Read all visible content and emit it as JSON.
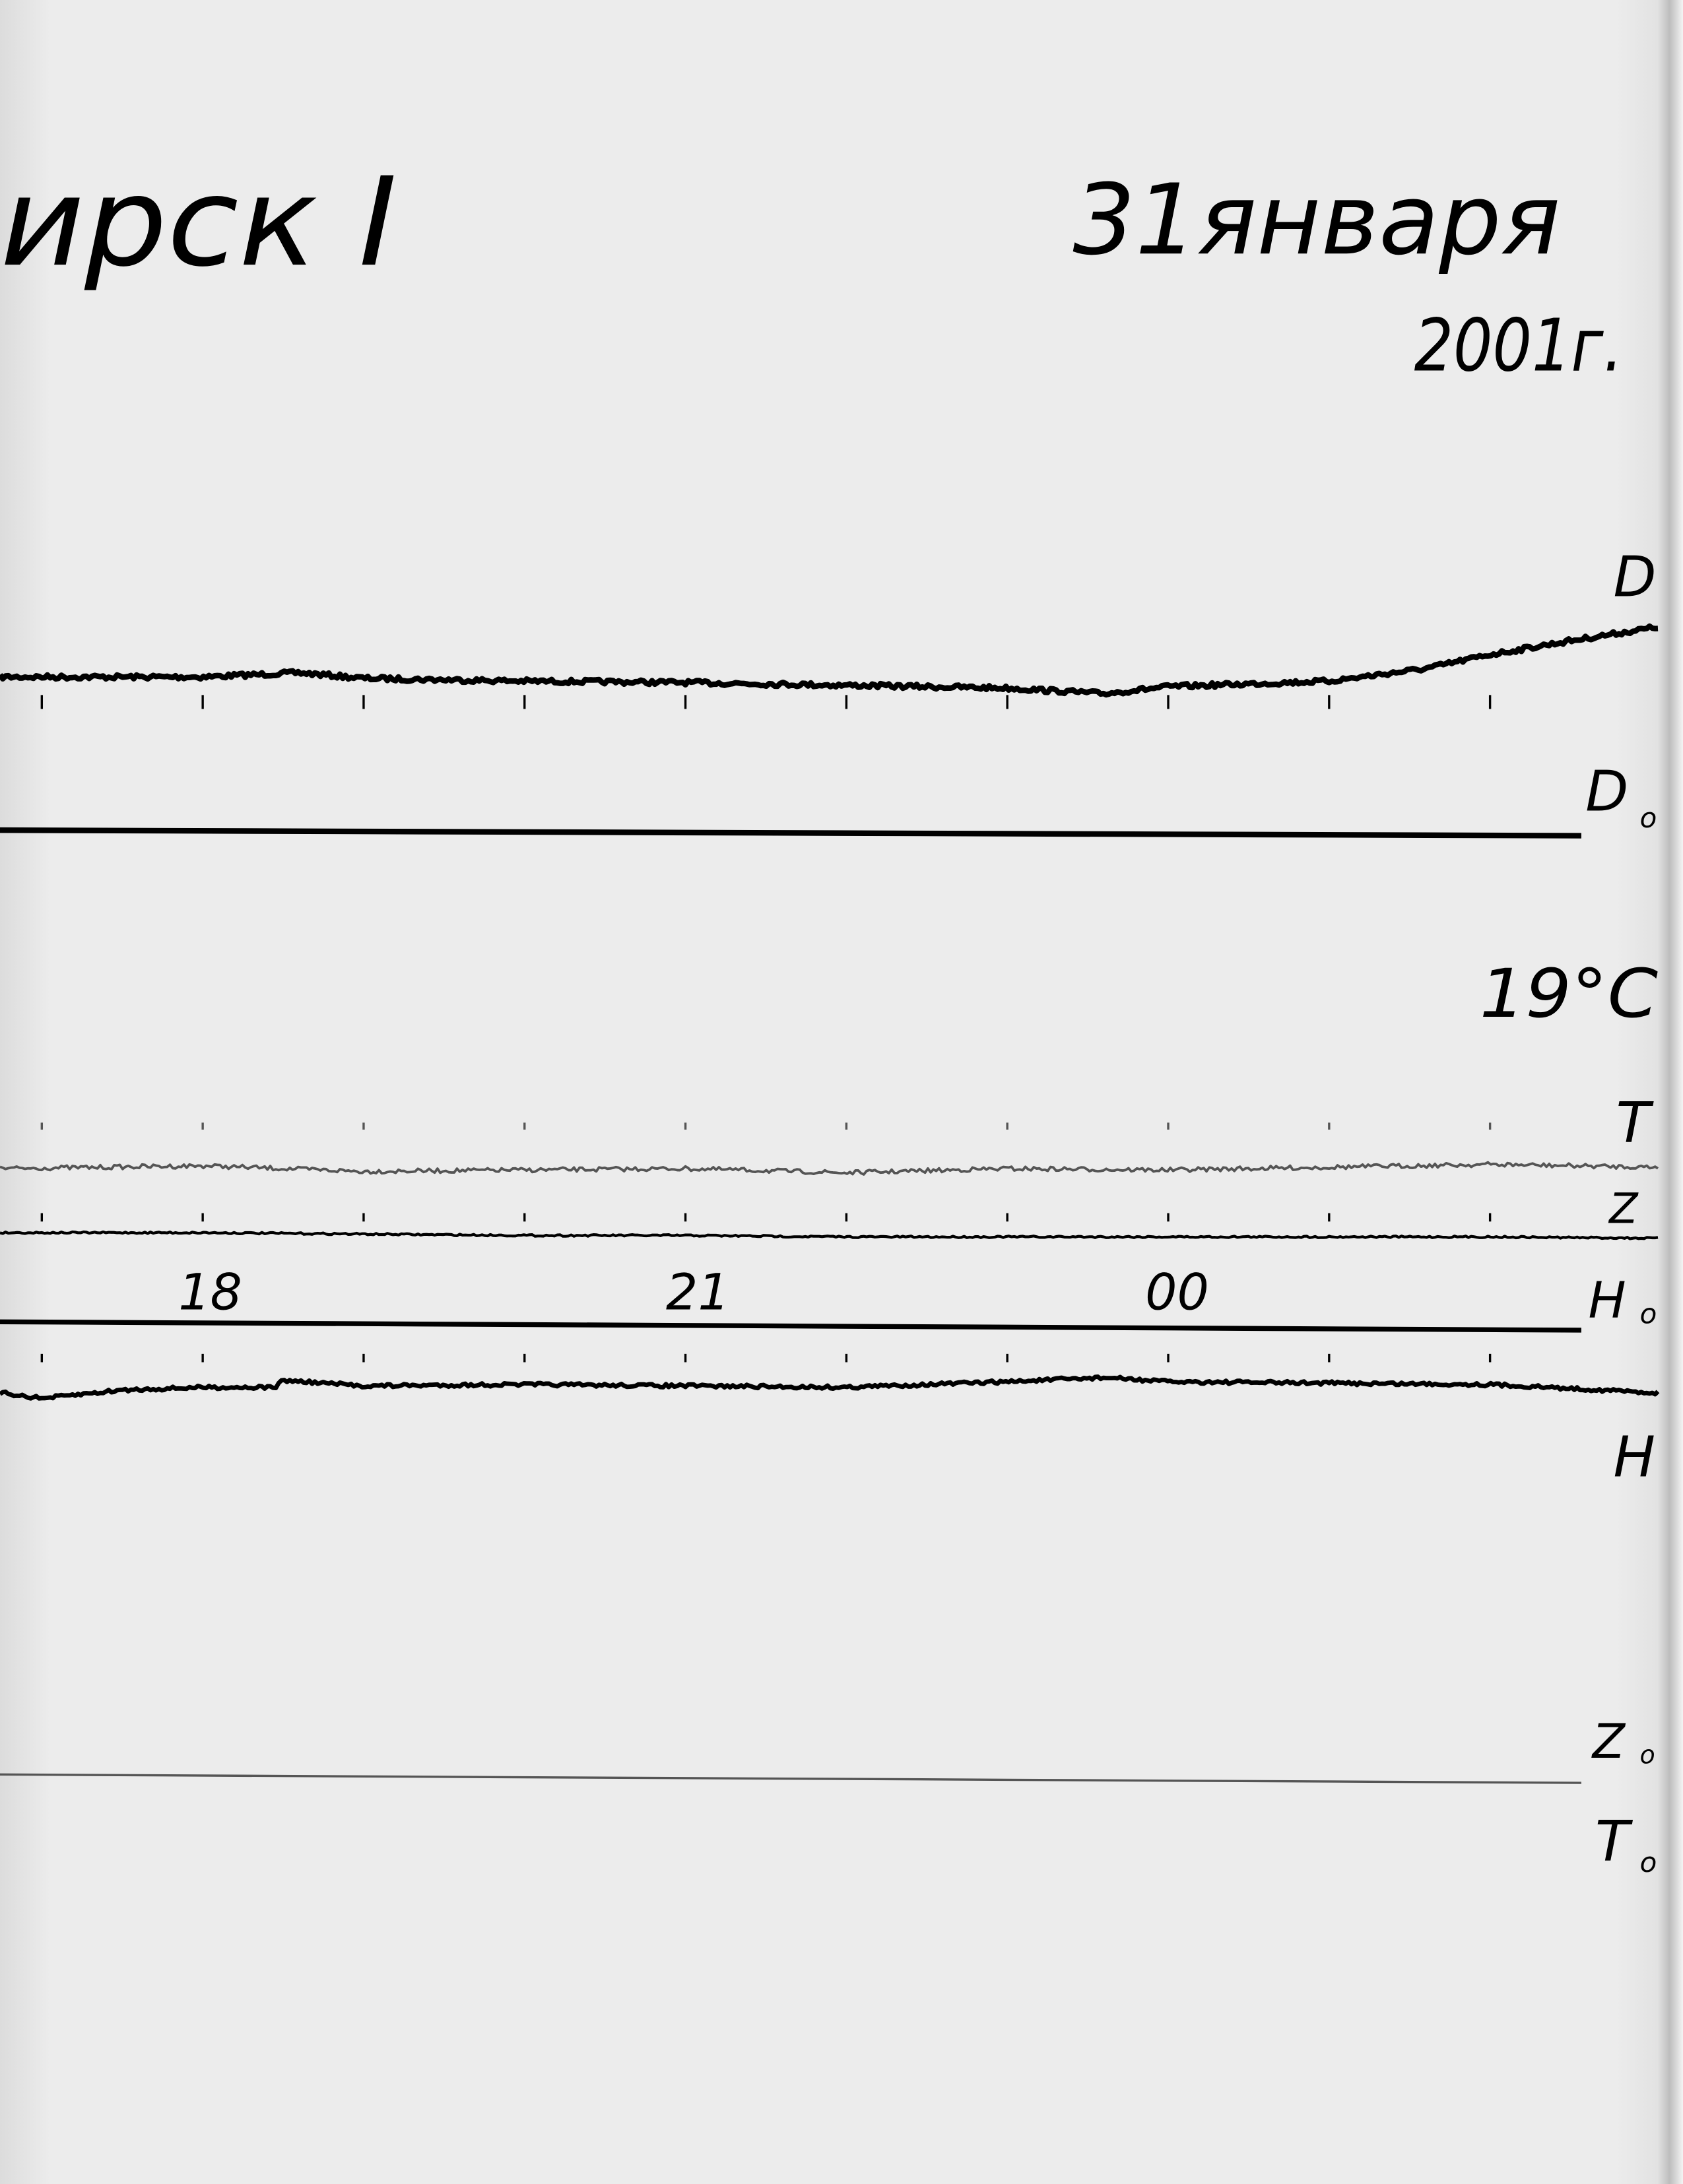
{
  "header": {
    "station": "ирск I",
    "date": "31января",
    "year": "2001г."
  },
  "labels": {
    "D": "D",
    "D0": "D",
    "D0_sub": "o",
    "temperature": "19°C",
    "T": "T",
    "Z": "Z",
    "H0": "H",
    "H0_sub": "o",
    "H": "H",
    "Z0": "Z",
    "Z0_sub": "o",
    "T0": "T",
    "T0_sub": "o"
  },
  "colors": {
    "ink": "#000000",
    "paper": "#ececec",
    "temperature_trace": "#555555"
  },
  "chart_data": {
    "type": "line",
    "title": "",
    "xlabel": "",
    "ylabel": "",
    "x_unit": "hour",
    "x_tick_labels": [
      "18",
      "21",
      "00"
    ],
    "x_tick_hours": [
      18,
      21,
      24
    ],
    "hour_marks": [
      17,
      18,
      19,
      20,
      21,
      22,
      23,
      24,
      25,
      26
    ],
    "xlim": [
      16.75,
      27.05
    ],
    "grid": false,
    "series": [
      {
        "name": "D",
        "x": [
          16.75,
          17,
          18,
          18.6,
          19,
          20,
          21,
          22,
          23,
          23.6,
          24,
          25,
          25.6,
          26,
          26.5,
          27.05
        ],
        "y": [
          0,
          0,
          0,
          3,
          -1,
          -3,
          -4,
          -6,
          -8,
          -12,
          -7,
          -3,
          6,
          16,
          26,
          36
        ]
      },
      {
        "name": "T",
        "x": [
          16.75,
          18,
          19,
          20,
          21,
          22,
          23,
          24,
          25,
          26,
          27.05
        ],
        "y": [
          0,
          2,
          -2,
          -1,
          0,
          -3,
          0,
          -1,
          1,
          3,
          1
        ]
      },
      {
        "name": "Z",
        "x": [
          16.75,
          18,
          19,
          20,
          21,
          22,
          23,
          24,
          25,
          26,
          27.05
        ],
        "y": [
          0,
          0,
          -1,
          -2,
          -2,
          -3,
          -3,
          -3,
          -3,
          -3,
          -4
        ]
      },
      {
        "name": "H",
        "x": [
          16.75,
          17,
          17.5,
          18,
          18.45,
          18.5,
          19,
          20,
          21,
          22,
          23,
          23.6,
          24,
          25,
          26,
          27.05
        ],
        "y": [
          0,
          -4,
          2,
          4,
          4,
          9,
          5,
          6,
          5,
          4,
          8,
          11,
          8,
          7,
          6,
          0
        ]
      }
    ],
    "baselines": [
      "D0",
      "H0",
      "Z0",
      "T0"
    ]
  }
}
